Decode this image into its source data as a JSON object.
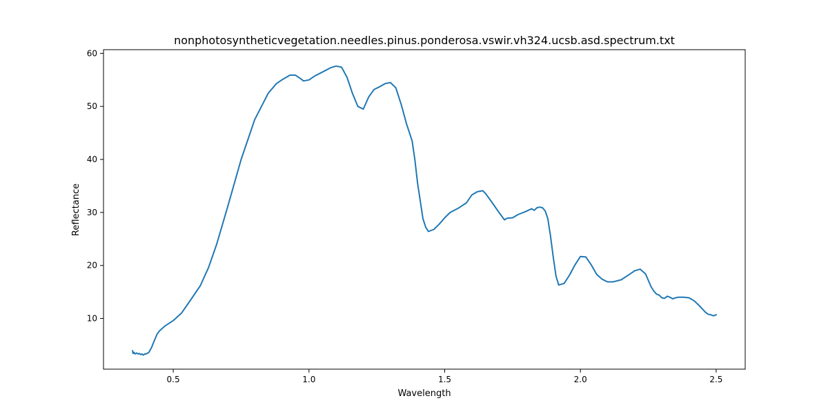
{
  "chart_data": {
    "type": "line",
    "title": "nonphotosyntheticvegetation.needles.pinus.ponderosa.vswir.vh324.ucsb.asd.spectrum.txt",
    "xlabel": "Wavelength",
    "ylabel": "Reflectance",
    "xlim": [
      0.243,
      2.607
    ],
    "ylim": [
      0.44,
      60.7
    ],
    "xticks": [
      0.5,
      1.0,
      1.5,
      2.0,
      2.5
    ],
    "xtick_labels": [
      "0.5",
      "1.0",
      "1.5",
      "2.0",
      "2.5"
    ],
    "yticks": [
      10,
      20,
      30,
      40,
      50,
      60
    ],
    "ytick_labels": [
      "10",
      "20",
      "30",
      "40",
      "50",
      "60"
    ],
    "grid": false,
    "series": [
      {
        "color": "#1f77b4",
        "x": [
          0.35,
          0.352,
          0.355,
          0.36,
          0.365,
          0.37,
          0.375,
          0.38,
          0.385,
          0.39,
          0.395,
          0.4,
          0.41,
          0.42,
          0.43,
          0.44,
          0.45,
          0.47,
          0.5,
          0.53,
          0.56,
          0.6,
          0.63,
          0.66,
          0.7,
          0.75,
          0.8,
          0.85,
          0.88,
          0.9,
          0.93,
          0.95,
          0.97,
          0.98,
          1.0,
          1.02,
          1.05,
          1.08,
          1.1,
          1.12,
          1.14,
          1.16,
          1.18,
          1.2,
          1.22,
          1.24,
          1.26,
          1.28,
          1.3,
          1.32,
          1.34,
          1.36,
          1.38,
          1.39,
          1.4,
          1.42,
          1.43,
          1.44,
          1.46,
          1.48,
          1.5,
          1.52,
          1.55,
          1.58,
          1.6,
          1.62,
          1.64,
          1.65,
          1.67,
          1.7,
          1.72,
          1.73,
          1.75,
          1.77,
          1.8,
          1.82,
          1.83,
          1.84,
          1.85,
          1.86,
          1.87,
          1.88,
          1.89,
          1.9,
          1.91,
          1.92,
          1.94,
          1.96,
          1.98,
          2.0,
          2.02,
          2.04,
          2.06,
          2.08,
          2.1,
          2.12,
          2.15,
          2.18,
          2.2,
          2.22,
          2.24,
          2.26,
          2.27,
          2.28,
          2.29,
          2.3,
          2.31,
          2.32,
          2.33,
          2.34,
          2.35,
          2.36,
          2.38,
          2.4,
          2.42,
          2.44,
          2.46,
          2.47,
          2.48,
          2.49,
          2.5
        ],
        "y": [
          3.9,
          3.4,
          3.6,
          3.3,
          3.5,
          3.3,
          3.4,
          3.2,
          3.3,
          3.1,
          3.3,
          3.3,
          3.6,
          4.5,
          5.8,
          7.0,
          7.7,
          8.6,
          9.6,
          11.0,
          13.2,
          16.2,
          19.6,
          24.0,
          31.0,
          40.0,
          47.5,
          52.5,
          54.3,
          55.0,
          55.9,
          55.9,
          55.2,
          54.8,
          55.0,
          55.7,
          56.5,
          57.3,
          57.6,
          57.4,
          55.5,
          52.5,
          50.0,
          49.5,
          51.8,
          53.2,
          53.7,
          54.3,
          54.5,
          53.5,
          50.3,
          46.6,
          43.5,
          40.0,
          35.5,
          28.8,
          27.2,
          26.4,
          26.8,
          27.8,
          29.0,
          30.0,
          30.8,
          31.8,
          33.3,
          33.9,
          34.1,
          33.6,
          32.2,
          30.0,
          28.6,
          28.9,
          29.0,
          29.6,
          30.2,
          30.7,
          30.4,
          30.9,
          31.0,
          30.9,
          30.3,
          28.8,
          25.5,
          21.5,
          18.0,
          16.3,
          16.6,
          18.2,
          20.1,
          21.7,
          21.6,
          20.1,
          18.3,
          17.4,
          16.9,
          16.9,
          17.3,
          18.3,
          19.0,
          19.3,
          18.4,
          16.0,
          15.2,
          14.6,
          14.4,
          13.9,
          13.8,
          14.2,
          14.0,
          13.7,
          13.9,
          14.0,
          14.0,
          13.9,
          13.3,
          12.3,
          11.2,
          10.8,
          10.7,
          10.5,
          10.7
        ]
      }
    ]
  }
}
